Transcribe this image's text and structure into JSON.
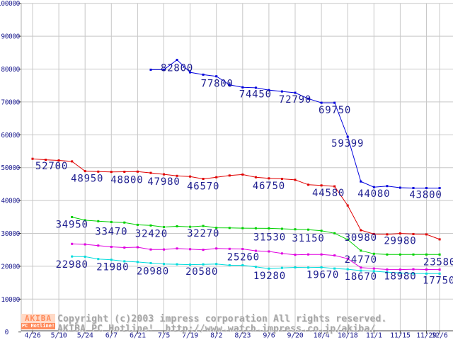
{
  "chart_data": {
    "type": "line",
    "title": "",
    "xlabel": "",
    "ylabel": "",
    "background": "#ffffff",
    "grid": true,
    "gridline_color": "#c8c8c8",
    "spine_color": "#b0b0b0",
    "axis_color": "#444444",
    "label_color": "#1f1f90",
    "ylim": [
      0,
      100000
    ],
    "y_ticks": [
      {
        "value": 0,
        "label": "0"
      },
      {
        "value": 10000,
        "label": "10000"
      },
      {
        "value": 20000,
        "label": "20000"
      },
      {
        "value": 30000,
        "label": "30000"
      },
      {
        "value": 40000,
        "label": "40000"
      },
      {
        "value": 50000,
        "label": "50000"
      },
      {
        "value": 60000,
        "label": "60000"
      },
      {
        "value": 70000,
        "label": "70000"
      },
      {
        "value": 80000,
        "label": "80000"
      },
      {
        "value": 90000,
        "label": "90000"
      },
      {
        "value": 100000,
        "label": "100000"
      }
    ],
    "x_slot_count": 32,
    "x_ticks": [
      {
        "slot": 0,
        "label": "4/26"
      },
      {
        "slot": 2,
        "label": "5/10"
      },
      {
        "slot": 4,
        "label": "5/24"
      },
      {
        "slot": 6,
        "label": "6/7"
      },
      {
        "slot": 8,
        "label": "6/21"
      },
      {
        "slot": 10,
        "label": "7/5"
      },
      {
        "slot": 12,
        "label": "7/19"
      },
      {
        "slot": 14,
        "label": "8/2"
      },
      {
        "slot": 16,
        "label": "8/23"
      },
      {
        "slot": 18,
        "label": "9/6"
      },
      {
        "slot": 20,
        "label": "9/20"
      },
      {
        "slot": 22,
        "label": "10/4"
      },
      {
        "slot": 24,
        "label": "10/18"
      },
      {
        "slot": 26,
        "label": "11/1"
      },
      {
        "slot": 28,
        "label": "11/15"
      },
      {
        "slot": 30,
        "label": "11/29"
      },
      {
        "slot": 31,
        "label": "12/6"
      }
    ],
    "series": [
      {
        "name": "red",
        "color": "#e00000",
        "start_slot": 0,
        "values": [
          52700,
          52400,
          52200,
          51900,
          48950,
          48800,
          48700,
          48750,
          48800,
          48400,
          47980,
          47500,
          47300,
          46570,
          47100,
          47600,
          47900,
          47100,
          46750,
          46600,
          46300,
          44800,
          44580,
          44300,
          38500,
          30980,
          29800,
          29700,
          29980,
          29800,
          29700,
          28200
        ],
        "point_labels": [
          {
            "slot": 0,
            "text": "52700",
            "dx": 27,
            "dy": 10
          },
          {
            "slot": 4,
            "text": "48950",
            "dx": 3,
            "dy": 10
          },
          {
            "slot": 8,
            "text": "48800",
            "dx": -15,
            "dy": 11
          },
          {
            "slot": 10,
            "text": "47980",
            "dx": 0,
            "dy": 10
          },
          {
            "slot": 13,
            "text": "46570",
            "dx": 0,
            "dy": 10
          },
          {
            "slot": 18,
            "text": "46750",
            "dx": 0,
            "dy": 10
          },
          {
            "slot": 22,
            "text": "44580",
            "dx": 10,
            "dy": 10
          },
          {
            "slot": 25,
            "text": "30980",
            "dx": 0,
            "dy": 10
          },
          {
            "slot": 28,
            "text": "29980",
            "dx": 0,
            "dy": 10
          }
        ]
      },
      {
        "name": "green",
        "color": "#00d000",
        "start_slot": 3,
        "values": [
          34950,
          34000,
          33700,
          33470,
          33300,
          32600,
          32420,
          31950,
          32150,
          32000,
          32270,
          31700,
          31650,
          31600,
          31560,
          31530,
          31400,
          31250,
          31150,
          30800,
          30050,
          28100,
          24770,
          23800,
          23580,
          23580,
          23580,
          23580,
          23580
        ],
        "point_labels": [
          {
            "slot": 3,
            "text": "34950",
            "dx": 0,
            "dy": 10
          },
          {
            "slot": 6,
            "text": "33470",
            "dx": 0,
            "dy": 13
          },
          {
            "slot": 9,
            "text": "32420",
            "dx": 1,
            "dy": 11
          },
          {
            "slot": 13,
            "text": "32270",
            "dx": 0,
            "dy": 10
          },
          {
            "slot": 18,
            "text": "31530",
            "dx": 1,
            "dy": 12
          },
          {
            "slot": 21,
            "text": "31150",
            "dx": 0,
            "dy": 12
          },
          {
            "slot": 25,
            "text": "24770",
            "dx": 0,
            "dy": 12
          },
          {
            "slot": 31,
            "text": "23580",
            "dx": 0,
            "dy": 10
          }
        ]
      },
      {
        "name": "magenta",
        "color": "#e000e0",
        "start_slot": 3,
        "values": [
          26800,
          26650,
          26300,
          25900,
          25700,
          25800,
          25100,
          25100,
          25400,
          25200,
          25000,
          25400,
          25300,
          25260,
          24700,
          24500,
          23900,
          23500,
          23600,
          23600,
          23300,
          22300,
          19600,
          19300,
          19000,
          18980,
          19100,
          19000,
          18980
        ],
        "point_labels": [
          {
            "slot": 16,
            "text": "25260",
            "dx": 1,
            "dy": 11
          },
          {
            "slot": 28,
            "text": "18980",
            "dx": 0,
            "dy": 9
          }
        ]
      },
      {
        "name": "cyan",
        "color": "#00dcdc",
        "start_slot": 3,
        "values": [
          22980,
          22900,
          22200,
          21980,
          21500,
          21300,
          20980,
          20700,
          20600,
          20500,
          20580,
          20700,
          20300,
          20300,
          19800,
          19280,
          19500,
          19650,
          19600,
          19670,
          19300,
          19100,
          18670,
          18500,
          18200,
          18000,
          17800,
          17750,
          17750
        ],
        "point_labels": [
          {
            "slot": 3,
            "text": "22980",
            "dx": 0,
            "dy": 11
          },
          {
            "slot": 6,
            "text": "21980",
            "dx": 2,
            "dy": 10
          },
          {
            "slot": 9,
            "text": "20980",
            "dx": 3,
            "dy": 11
          },
          {
            "slot": 13,
            "text": "20580",
            "dx": -2,
            "dy": 10
          },
          {
            "slot": 18,
            "text": "19280",
            "dx": 1,
            "dy": 10
          },
          {
            "slot": 22,
            "text": "19670",
            "dx": 2,
            "dy": 10
          },
          {
            "slot": 25,
            "text": "18670",
            "dx": 0,
            "dy": 8
          },
          {
            "slot": 31,
            "text": "17750",
            "dx": -1,
            "dy": 9
          }
        ]
      },
      {
        "name": "blue",
        "color": "#0000dd",
        "start_slot": 9,
        "values": [
          79800,
          79800,
          82800,
          79000,
          78300,
          77800,
          75200,
          74450,
          74300,
          73600,
          73200,
          72790,
          71000,
          69750,
          69750,
          59399,
          45800,
          44080,
          44400,
          43900,
          43800,
          43800,
          43800
        ],
        "point_labels": [
          {
            "slot": 11,
            "text": "82800",
            "dx": 0,
            "dy": 11
          },
          {
            "slot": 14,
            "text": "77800",
            "dx": 1,
            "dy": 10
          },
          {
            "slot": 16,
            "text": "74450",
            "dx": 18,
            "dy": 9
          },
          {
            "slot": 20,
            "text": "72790",
            "dx": 0,
            "dy": 9
          },
          {
            "slot": 22,
            "text": "69750",
            "dx": 19,
            "dy": 10
          },
          {
            "slot": 24,
            "text": "59399",
            "dx": 0,
            "dy": 9
          },
          {
            "slot": 26,
            "text": "44080",
            "dx": 0,
            "dy": 9
          },
          {
            "slot": 30,
            "text": "43800",
            "dx": -1,
            "dy": 9
          }
        ]
      }
    ]
  },
  "footer": {
    "logo_top": "AKIBA",
    "logo_bottom": "PC Hotline!",
    "copyright_line1": "Copyright (c)2003 impress corporation All rights reserved.",
    "copyright_line2": "AKIBA PC Hotline!  http://www.watch.impress.co.jp/akiba/"
  }
}
